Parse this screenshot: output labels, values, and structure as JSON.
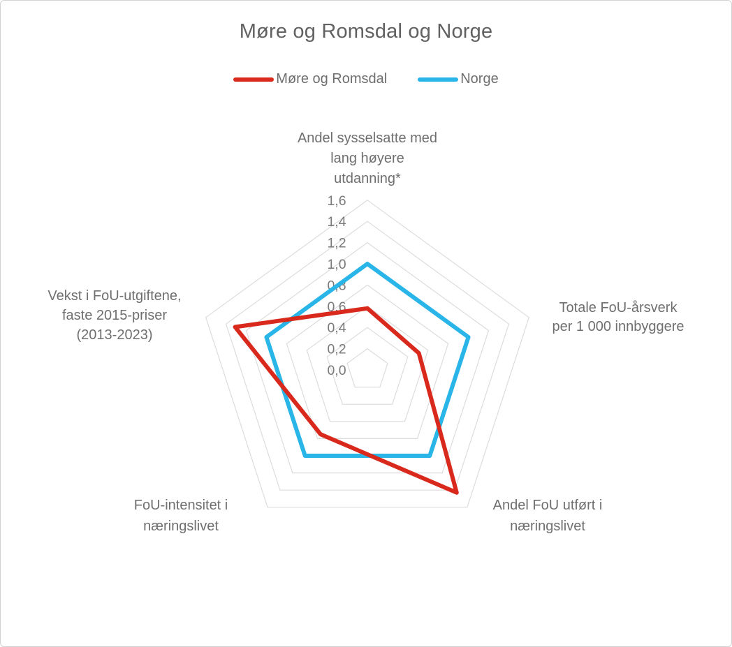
{
  "title": "Møre og Romsdal og Norge",
  "chart_data": {
    "type": "radar",
    "title": "Møre og Romsdal og Norge",
    "legend_position": "top",
    "grid": "pentagon-rings",
    "grid_color": "#dcdcdc",
    "tick_color": "#7a7a7a",
    "label_color": "#6f6f6f",
    "scale": {
      "min": 0.0,
      "max": 1.6,
      "step": 0.2,
      "tick_labels": [
        "0,0",
        "0,2",
        "0,4",
        "0,6",
        "0,8",
        "1,0",
        "1,2",
        "1,4",
        "1,6"
      ]
    },
    "axes": [
      {
        "slug": "andel-sysselsatte-lang-hoyere-utdanning",
        "label": "Andel sysselsatte med lang høyere utdanning*",
        "label_lines": [
          "Andel sysselsatte med",
          "lang høyere",
          "utdanning*"
        ]
      },
      {
        "slug": "totale-fou-arsverk-per-1000-innbyggere",
        "label": "Totale FoU-årsverk per 1 000 innbyggere",
        "label_lines": [
          "Totale FoU-årsverk",
          "per 1 000 innbyggere"
        ]
      },
      {
        "slug": "andel-fou-utfort-i-naringslivet",
        "label": "Andel FoU utført i næringslivet",
        "label_lines": [
          "Andel FoU utført i",
          "næringslivet"
        ]
      },
      {
        "slug": "fou-intensitet-i-naringslivet",
        "label": "FoU-intensitet i næringslivet",
        "label_lines": [
          "FoU-intensitet i",
          "næringslivet"
        ]
      },
      {
        "slug": "vekst-i-fou-utgiftene-faste-2015-priser",
        "label": "Vekst i FoU-utgiftene, faste 2015-priser (2013-2023)",
        "label_lines": [
          "Vekst i FoU-utgiftene,",
          "faste 2015-priser",
          "(2013-2023)"
        ]
      }
    ],
    "series": [
      {
        "name": "Møre og Romsdal",
        "slug": "more-og-romsdal",
        "color": "#d9291d",
        "values": [
          0.58,
          0.51,
          1.43,
          0.75,
          1.31
        ]
      },
      {
        "name": "Norge",
        "slug": "norge",
        "color": "#29b5e8",
        "values": [
          1.0,
          1.0,
          1.0,
          1.0,
          1.0
        ]
      }
    ]
  }
}
